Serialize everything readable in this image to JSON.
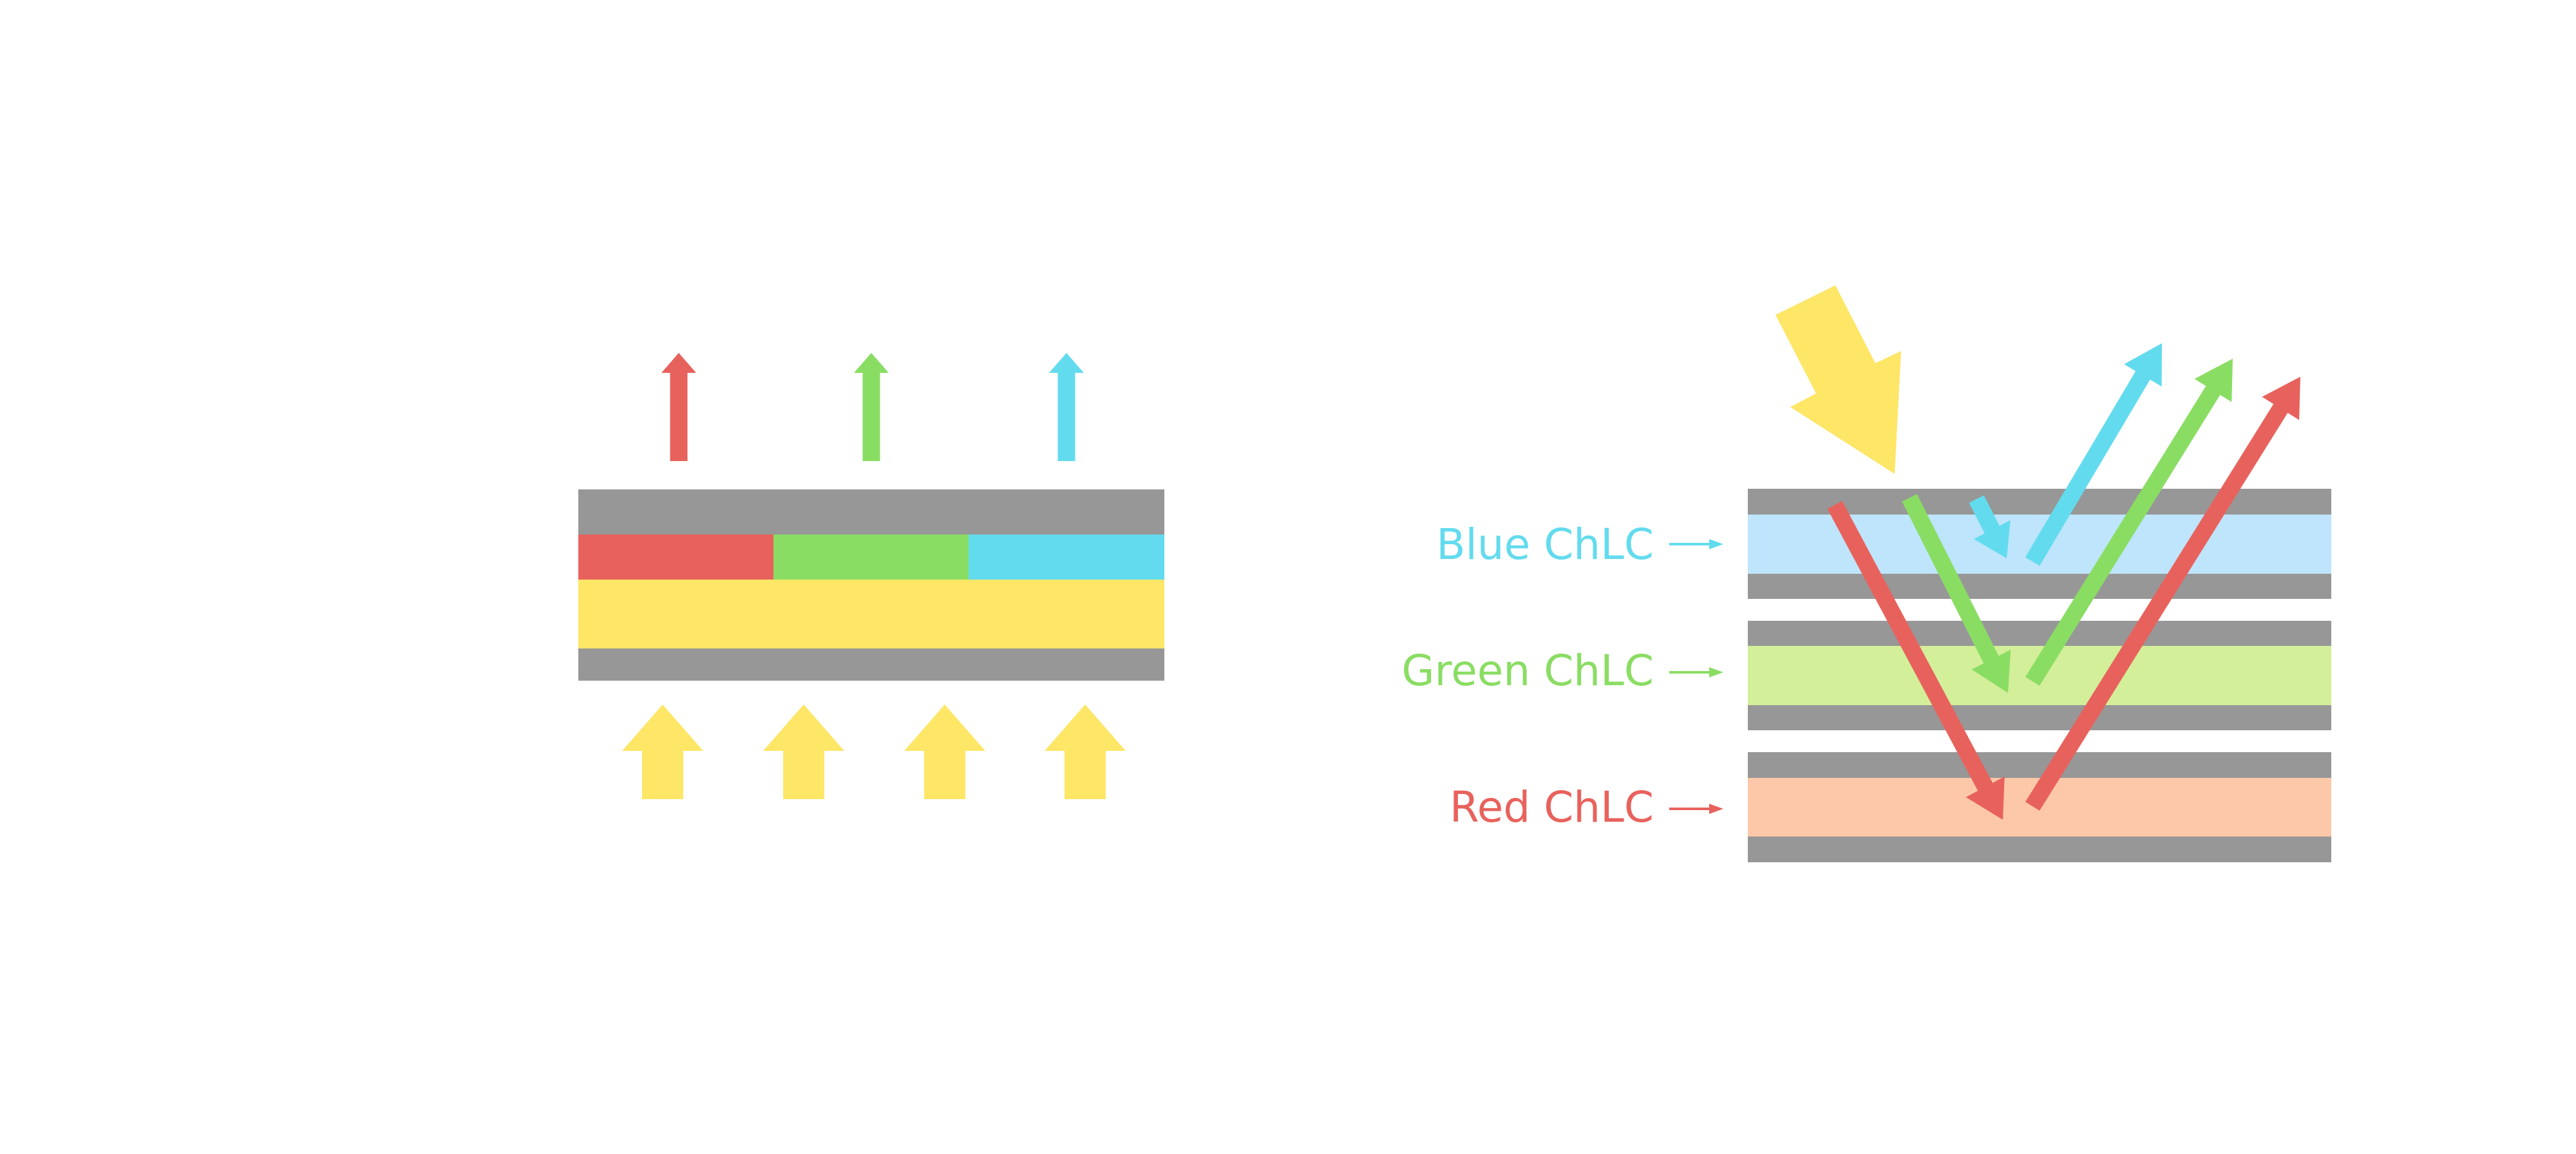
{
  "colors": {
    "red": "#E8625D",
    "green": "#8ADD63",
    "cyan": "#63DBEE",
    "yellow": "#FEE667",
    "gray": "#979797",
    "blue_layer": "#BEE5FC",
    "green_layer": "#D3EF9A",
    "red_layer": "#FDC8A9"
  },
  "labels": {
    "blue": "Blue ChLC",
    "green": "Green ChLC",
    "red": "Red ChLC"
  },
  "icons": {
    "incoming_light": "lightning-arrow-icon",
    "backlight": "arrow-up-icon",
    "pointer": "arrow-right-icon"
  }
}
